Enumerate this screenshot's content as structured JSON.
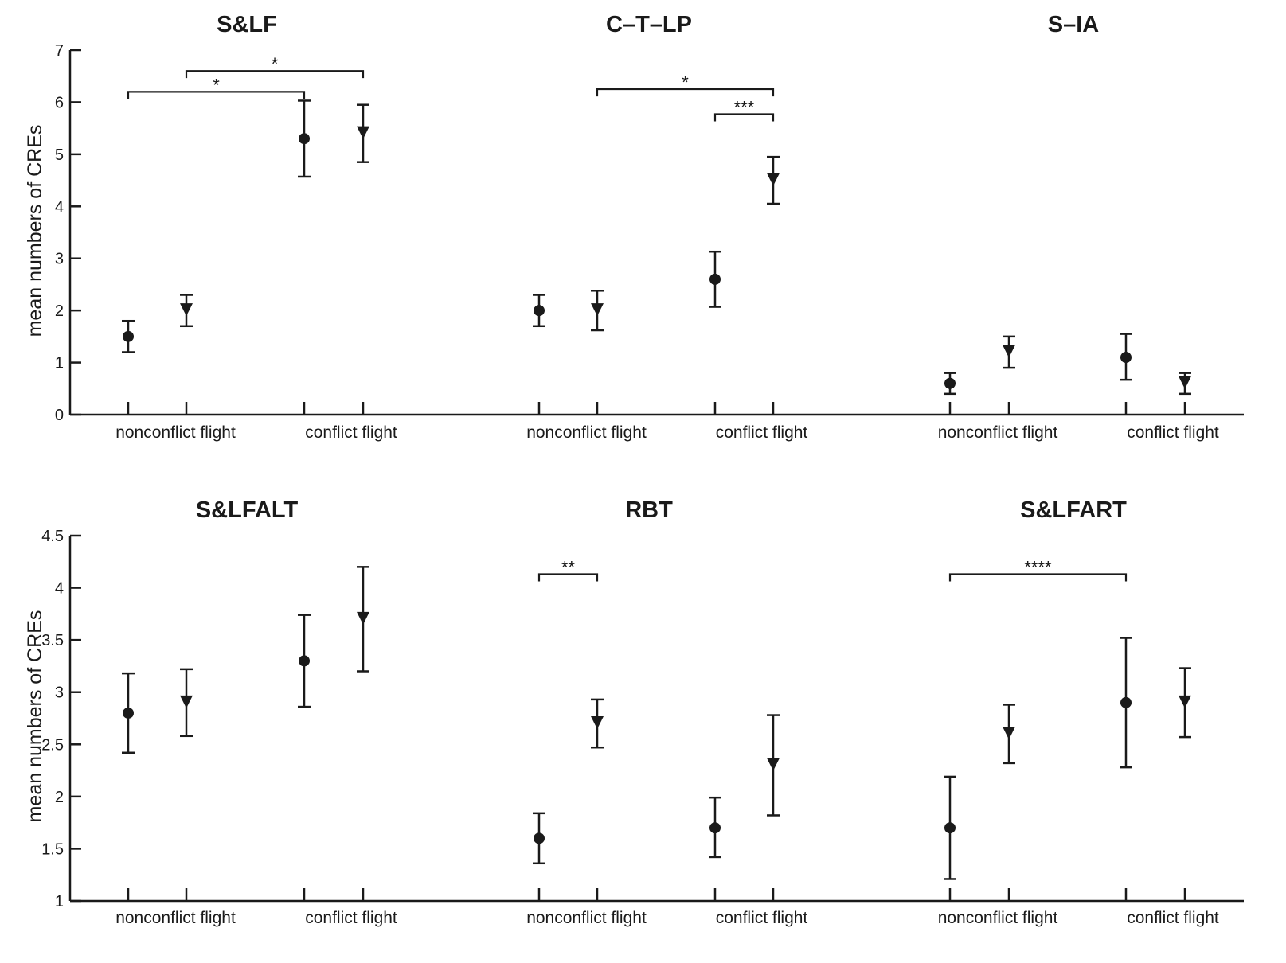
{
  "chart_data": [
    {
      "type": "scatter",
      "row": "top",
      "ylabel": "mean numbers of CREs",
      "ylim": [
        0,
        7
      ],
      "yticks": [
        "0",
        "1",
        "2",
        "3",
        "4",
        "5",
        "6",
        "7"
      ],
      "ytick_values": [
        0,
        1,
        2,
        3,
        4,
        5,
        6,
        7
      ],
      "panels": [
        {
          "title": "S&LF",
          "categories": [
            "nonconflict flight",
            "conflict flight"
          ],
          "points": [
            {
              "category": "nonconflict flight",
              "marker": "circle",
              "mean": 1.5,
              "low": 1.2,
              "high": 1.8
            },
            {
              "category": "nonconflict flight",
              "marker": "triangle-down",
              "mean": 2.0,
              "low": 1.7,
              "high": 2.3
            },
            {
              "category": "conflict flight",
              "marker": "circle",
              "mean": 5.3,
              "low": 4.57,
              "high": 6.03
            },
            {
              "category": "conflict flight",
              "marker": "triangle-down",
              "mean": 5.4,
              "low": 4.85,
              "high": 5.95
            }
          ],
          "significance": [
            {
              "from": 1,
              "to": 3,
              "label": "*",
              "level": 6.6
            },
            {
              "from": 0,
              "to": 2,
              "label": "*",
              "level": 6.2
            }
          ]
        },
        {
          "title": "C–T–LP",
          "categories": [
            "nonconflict flight",
            "conflict flight"
          ],
          "points": [
            {
              "category": "nonconflict flight",
              "marker": "circle",
              "mean": 2.0,
              "low": 1.7,
              "high": 2.3
            },
            {
              "category": "nonconflict flight",
              "marker": "triangle-down",
              "mean": 2.0,
              "low": 1.62,
              "high": 2.38
            },
            {
              "category": "conflict flight",
              "marker": "circle",
              "mean": 2.6,
              "low": 2.07,
              "high": 3.13
            },
            {
              "category": "conflict flight",
              "marker": "triangle-down",
              "mean": 4.5,
              "low": 4.05,
              "high": 4.95
            }
          ],
          "significance": [
            {
              "from": 1,
              "to": 3,
              "label": "*",
              "level": 6.25
            },
            {
              "from": 2,
              "to": 3,
              "label": "***",
              "level": 5.77
            }
          ]
        },
        {
          "title": "S–IA",
          "categories": [
            "nonconflict flight",
            "conflict flight"
          ],
          "points": [
            {
              "category": "nonconflict flight",
              "marker": "circle",
              "mean": 0.6,
              "low": 0.4,
              "high": 0.8
            },
            {
              "category": "nonconflict flight",
              "marker": "triangle-down",
              "mean": 1.2,
              "low": 0.9,
              "high": 1.5
            },
            {
              "category": "conflict flight",
              "marker": "circle",
              "mean": 1.1,
              "low": 0.67,
              "high": 1.55
            },
            {
              "category": "conflict flight",
              "marker": "triangle-down",
              "mean": 0.6,
              "low": 0.4,
              "high": 0.8
            }
          ],
          "significance": []
        }
      ]
    },
    {
      "type": "scatter",
      "row": "bottom",
      "ylabel": "mean numbers of CREs",
      "ylim": [
        1,
        4.5
      ],
      "yticks": [
        "1",
        "1.5",
        "2",
        "2.5",
        "3",
        "3.5",
        "4",
        "4.5"
      ],
      "ytick_values": [
        1,
        1.5,
        2,
        2.5,
        3,
        3.5,
        4,
        4.5
      ],
      "panels": [
        {
          "title": "S&LFALT",
          "categories": [
            "nonconflict flight",
            "conflict flight"
          ],
          "points": [
            {
              "category": "nonconflict flight",
              "marker": "circle",
              "mean": 2.8,
              "low": 2.42,
              "high": 3.18
            },
            {
              "category": "nonconflict flight",
              "marker": "triangle-down",
              "mean": 2.9,
              "low": 2.58,
              "high": 3.22
            },
            {
              "category": "conflict flight",
              "marker": "circle",
              "mean": 3.3,
              "low": 2.86,
              "high": 3.74
            },
            {
              "category": "conflict flight",
              "marker": "triangle-down",
              "mean": 3.7,
              "low": 3.2,
              "high": 4.2
            }
          ],
          "significance": []
        },
        {
          "title": "RBT",
          "categories": [
            "nonconflict flight",
            "conflict flight"
          ],
          "points": [
            {
              "category": "nonconflict flight",
              "marker": "circle",
              "mean": 1.6,
              "low": 1.36,
              "high": 1.84
            },
            {
              "category": "nonconflict flight",
              "marker": "triangle-down",
              "mean": 2.7,
              "low": 2.47,
              "high": 2.93
            },
            {
              "category": "conflict flight",
              "marker": "circle",
              "mean": 1.7,
              "low": 1.42,
              "high": 1.99
            },
            {
              "category": "conflict flight",
              "marker": "triangle-down",
              "mean": 2.3,
              "low": 1.82,
              "high": 2.78
            }
          ],
          "significance": [
            {
              "from": 0,
              "to": 1,
              "label": "**",
              "level": 4.13
            }
          ]
        },
        {
          "title": "S&LFART",
          "categories": [
            "nonconflict flight",
            "conflict flight"
          ],
          "points": [
            {
              "category": "nonconflict flight",
              "marker": "circle",
              "mean": 1.7,
              "low": 1.21,
              "high": 2.19
            },
            {
              "category": "nonconflict flight",
              "marker": "triangle-down",
              "mean": 2.6,
              "low": 2.32,
              "high": 2.88
            },
            {
              "category": "conflict flight",
              "marker": "circle",
              "mean": 2.9,
              "low": 2.28,
              "high": 3.52
            },
            {
              "category": "conflict flight",
              "marker": "triangle-down",
              "mean": 2.9,
              "low": 2.57,
              "high": 3.23
            }
          ],
          "significance": [
            {
              "from": 0,
              "to": 2,
              "label": "****",
              "level": 4.13
            }
          ]
        }
      ]
    }
  ]
}
